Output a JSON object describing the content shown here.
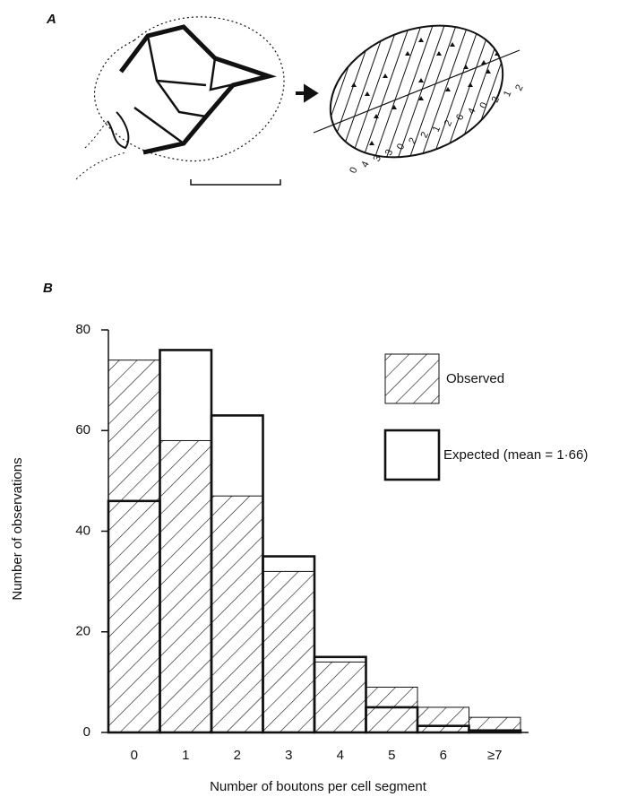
{
  "panel_a": {
    "label": "A",
    "segment_labels": [
      "0",
      "4",
      "3",
      "3",
      "0",
      "2",
      "2",
      "1",
      "2",
      "6",
      "4",
      "0",
      "2",
      "1",
      "2"
    ]
  },
  "chart_data": {
    "type": "bar",
    "panel_label": "B",
    "xlabel": "Number of boutons per cell segment",
    "ylabel": "Number of observations",
    "categories": [
      "0",
      "1",
      "2",
      "3",
      "4",
      "5",
      "6",
      "≥7"
    ],
    "series": [
      {
        "name": "Observed",
        "style": "hatched",
        "color": "#111111",
        "values": [
          74,
          58,
          47,
          32,
          14,
          9,
          5,
          3
        ]
      },
      {
        "name": "Expected (mean = 1·66)",
        "style": "outline",
        "color": "#111111",
        "values": [
          46,
          76,
          63,
          35,
          15,
          5,
          1.3,
          0.4
        ]
      }
    ],
    "ylim": [
      0,
      80
    ],
    "yticks": [
      0,
      20,
      40,
      60,
      80
    ]
  }
}
